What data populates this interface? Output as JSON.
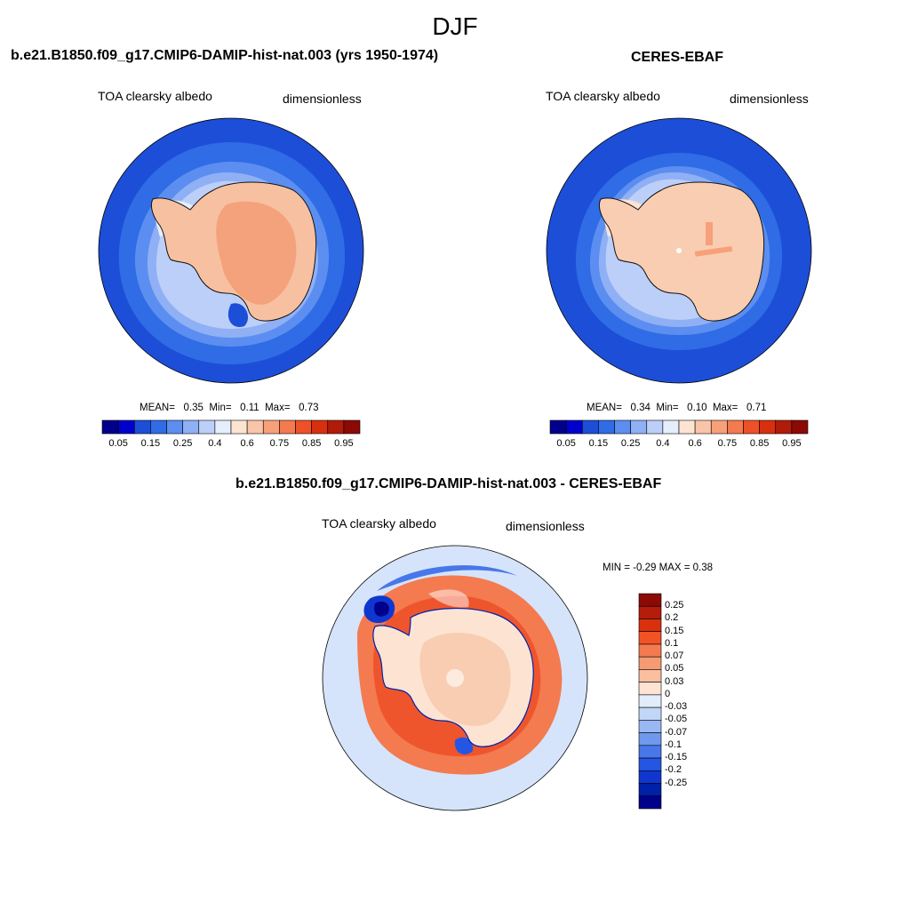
{
  "page": {
    "title": "DJF"
  },
  "panels": [
    {
      "id": "model",
      "header": "b.e21.B1850.f09_g17.CMIP6-DAMIP-hist-nat.003 (yrs 1950-1974)",
      "variable": "TOA clearsky albedo",
      "units": "dimensionless",
      "stats": {
        "mean_label": "MEAN=",
        "mean": "0.35",
        "min_label": "Min=",
        "min": "0.11",
        "max_label": "Max=",
        "max": "0.73"
      },
      "interior_level": "0.6"
    },
    {
      "id": "obs",
      "header": "CERES-EBAF",
      "variable": "TOA clearsky albedo",
      "units": "dimensionless",
      "stats": {
        "mean_label": "MEAN=",
        "mean": "0.34",
        "min_label": "Min=",
        "min": "0.10",
        "max_label": "Max=",
        "max": "0.71"
      },
      "interior_level": "0.6"
    },
    {
      "id": "diff",
      "header": "b.e21.B1850.f09_g17.CMIP6-DAMIP-hist-nat.003 - CERES-EBAF",
      "variable": "TOA clearsky albedo",
      "units": "dimensionless",
      "range_text": "MIN =  -0.29 MAX =   0.38"
    }
  ],
  "albedo_colorbar": {
    "colors": [
      "#00008b",
      "#0000cd",
      "#1d4ed8",
      "#2f6ce5",
      "#5b8ef0",
      "#8fb0f5",
      "#bccff8",
      "#e6eefb",
      "#fde3d2",
      "#f9c5a8",
      "#f7a07a",
      "#f47a4f",
      "#ee5128",
      "#d8300f",
      "#b11c0a",
      "#8b0a05"
    ],
    "labels": [
      "0.05",
      "0.15",
      "0.25",
      "0.4",
      "0.6",
      "0.75",
      "0.85",
      "0.95"
    ]
  },
  "diff_colorbar": {
    "colors": [
      "#8b0a05",
      "#b31d0a",
      "#d9310e",
      "#f25325",
      "#f47a50",
      "#f69a73",
      "#f9bf9e",
      "#fde4d2",
      "#e2ecfb",
      "#c2d6f8",
      "#99b8f3",
      "#6f98ee",
      "#4877ea",
      "#2556e3",
      "#0f37cf",
      "#0020a8",
      "#00008b"
    ],
    "labels": [
      "0.25",
      "0.2",
      "0.15",
      "0.1",
      "0.07",
      "0.05",
      "0.03",
      "0",
      "-0.03",
      "-0.05",
      "-0.07",
      "-0.1",
      "-0.15",
      "-0.2",
      "-0.25"
    ]
  }
}
